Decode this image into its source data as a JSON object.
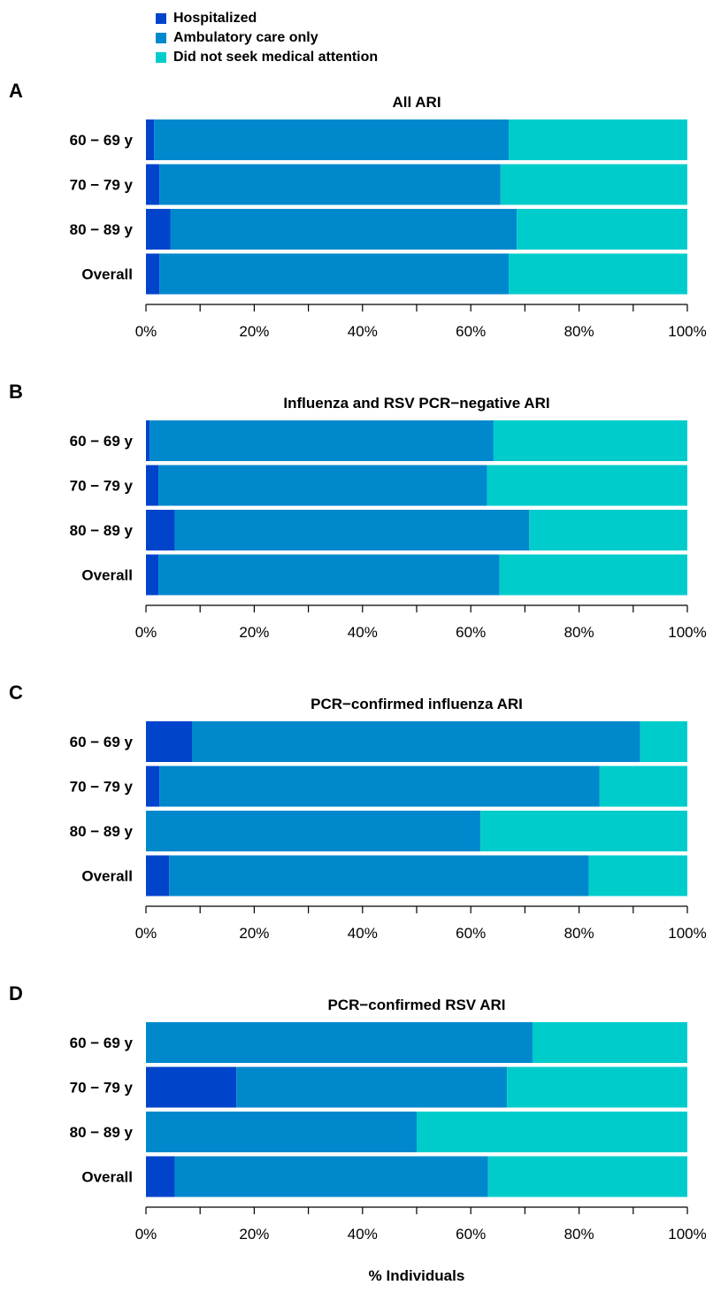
{
  "chart_data": {
    "type": "bar",
    "orientation": "horizontal",
    "stacked": "percent",
    "xlabel": "% Individuals",
    "xlim": [
      0,
      100
    ],
    "x_ticks": [
      "0%",
      "20%",
      "40%",
      "60%",
      "80%",
      "100%"
    ],
    "legend_position": "top-left",
    "legend": [
      {
        "name": "Hospitalized",
        "color": "#0044CC"
      },
      {
        "name": "Ambulatory care only",
        "color": "#0088CC"
      },
      {
        "name": "Did not seek medical attention",
        "color": "#00CCCC"
      }
    ],
    "categories": [
      "60 − 69 y",
      "70 − 79 y",
      "80 − 89 y",
      "Overall"
    ],
    "panels": [
      {
        "letter": "A",
        "title": "All ARI",
        "series": [
          {
            "name": "Hospitalized",
            "values": [
              1.5,
              2.5,
              4.5,
              2.5
            ]
          },
          {
            "name": "Ambulatory care only",
            "values": [
              65.5,
              63.0,
              64.0,
              64.5
            ]
          },
          {
            "name": "Did not seek medical attention",
            "values": [
              33.0,
              34.5,
              31.5,
              33.0
            ]
          }
        ]
      },
      {
        "letter": "B",
        "title": "Influenza and RSV PCR−negative ARI",
        "series": [
          {
            "name": "Hospitalized",
            "values": [
              0.7,
              2.3,
              5.3,
              2.3
            ]
          },
          {
            "name": "Ambulatory care only",
            "values": [
              63.5,
              60.7,
              65.5,
              63.0
            ]
          },
          {
            "name": "Did not seek medical attention",
            "values": [
              35.8,
              37.0,
              29.2,
              34.7
            ]
          }
        ]
      },
      {
        "letter": "C",
        "title": "PCR−confirmed influenza ARI",
        "series": [
          {
            "name": "Hospitalized",
            "values": [
              8.5,
              2.5,
              0,
              4.3
            ]
          },
          {
            "name": "Ambulatory care only",
            "values": [
              82.8,
              81.3,
              61.8,
              77.5
            ]
          },
          {
            "name": "Did not seek medical attention",
            "values": [
              8.7,
              16.2,
              38.2,
              18.2
            ]
          }
        ]
      },
      {
        "letter": "D",
        "title": "PCR−confirmed RSV ARI",
        "series": [
          {
            "name": "Hospitalized",
            "values": [
              0,
              16.7,
              0,
              5.3
            ]
          },
          {
            "name": "Ambulatory care only",
            "values": [
              71.4,
              50.0,
              50.0,
              57.9
            ]
          },
          {
            "name": "Did not seek medical attention",
            "values": [
              28.6,
              33.3,
              50.0,
              36.8
            ]
          }
        ]
      }
    ]
  }
}
